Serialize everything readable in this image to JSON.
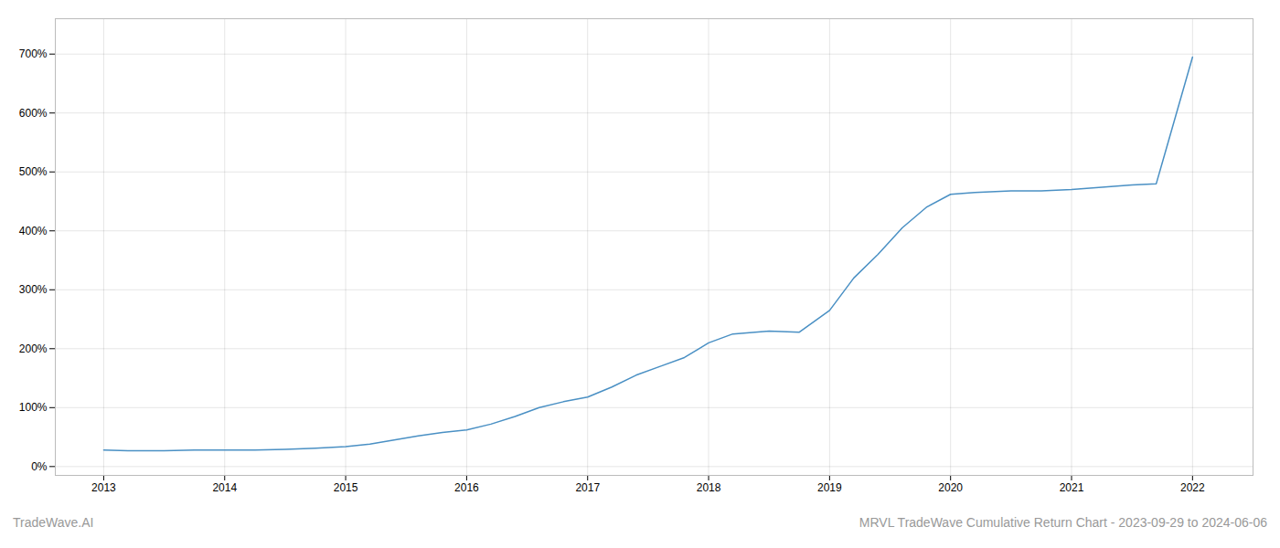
{
  "chart_data": {
    "type": "line",
    "title": "MRVL TradeWave Cumulative Return Chart - 2023-09-29 to 2024-06-06",
    "annotations": [
      "TradeWave.AI"
    ],
    "color": "#4a90c4",
    "x": [
      2013.0,
      2013.2,
      2013.5,
      2013.75,
      2014.0,
      2014.25,
      2014.5,
      2014.75,
      2015.0,
      2015.2,
      2015.4,
      2015.6,
      2015.8,
      2016.0,
      2016.2,
      2016.4,
      2016.6,
      2016.8,
      2017.0,
      2017.2,
      2017.4,
      2017.6,
      2017.8,
      2018.0,
      2018.2,
      2018.5,
      2018.75,
      2019.0,
      2019.2,
      2019.4,
      2019.6,
      2019.8,
      2020.0,
      2020.2,
      2020.5,
      2020.75,
      2021.0,
      2021.25,
      2021.5,
      2021.7,
      2022.0
    ],
    "values": [
      28,
      27,
      27,
      28,
      28,
      28,
      29,
      31,
      34,
      38,
      45,
      52,
      58,
      62,
      72,
      85,
      100,
      110,
      118,
      135,
      155,
      170,
      185,
      210,
      225,
      230,
      228,
      265,
      320,
      360,
      405,
      440,
      462,
      465,
      468,
      468,
      470,
      474,
      478,
      480,
      695
    ],
    "xlim": [
      2012.6,
      2022.5
    ],
    "xticks": [
      2013,
      2014,
      2015,
      2016,
      2017,
      2018,
      2019,
      2020,
      2021,
      2022
    ],
    "ylim": [
      -15,
      760
    ],
    "yticks": [
      {
        "value": 0,
        "label": "0%"
      },
      {
        "value": 100,
        "label": "100%"
      },
      {
        "value": 200,
        "label": "200%"
      },
      {
        "value": 300,
        "label": "300%"
      },
      {
        "value": 400,
        "label": "400%"
      },
      {
        "value": 500,
        "label": "500%"
      },
      {
        "value": 600,
        "label": "600%"
      },
      {
        "value": 700,
        "label": "700%"
      }
    ],
    "grid": true
  }
}
